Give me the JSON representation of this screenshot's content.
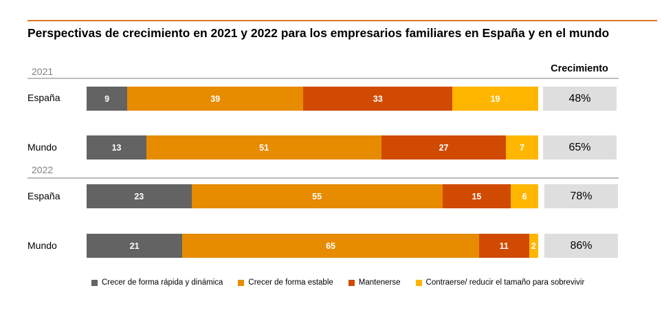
{
  "colors": {
    "accent_line": "#e0762a",
    "series": [
      "#636363",
      "#e78b00",
      "#d04a02",
      "#ffb600"
    ],
    "growth_box": "#dedede"
  },
  "chart_data": {
    "type": "bar",
    "orientation": "horizontal",
    "stacked": true,
    "title": "Perspectivas de crecimiento en 2021 y 2022 para los empresarios familiares en España y en el mundo",
    "series_names": [
      "Crecer de forma rápida y dinámica",
      "Crecer de forma estable",
      "Mantenerse",
      "Contraerse/ reducir el tamaño para sobrevivir"
    ],
    "growth_header": "Crecimiento",
    "groups": [
      {
        "year": "2021",
        "rows": [
          {
            "label": "España",
            "values": [
              9,
              39,
              33,
              19
            ],
            "growth": "48%"
          },
          {
            "label": "Mundo",
            "values": [
              13,
              51,
              27,
              7
            ],
            "growth": "65%"
          }
        ]
      },
      {
        "year": "2022",
        "rows": [
          {
            "label": "España",
            "values": [
              23,
              55,
              15,
              6
            ],
            "growth": "78%"
          },
          {
            "label": "Mundo",
            "values": [
              21,
              65,
              11,
              2
            ],
            "growth": "86%"
          }
        ]
      }
    ],
    "xlim": [
      0,
      100
    ],
    "grid": false,
    "legend_position": "bottom"
  }
}
